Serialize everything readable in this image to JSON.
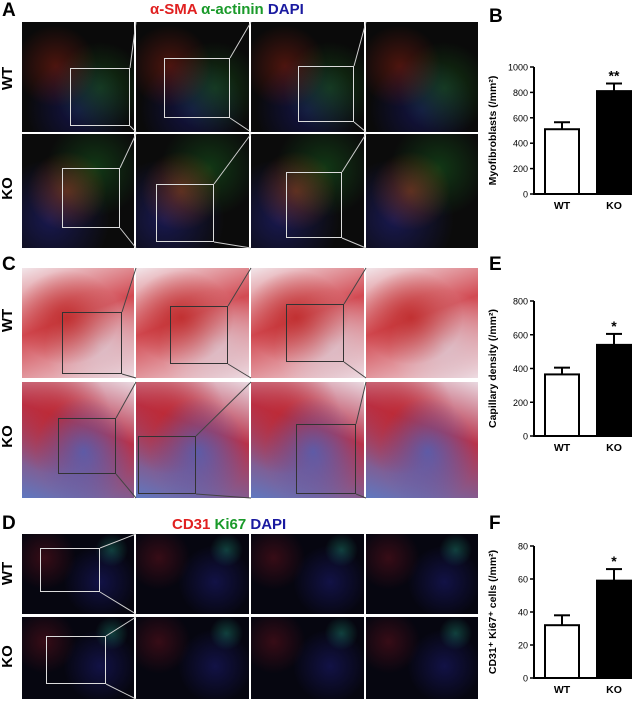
{
  "panels": {
    "A": {
      "letter": "A",
      "title_parts": [
        "α-SMA",
        " α-actinin",
        " DAPI"
      ],
      "title_colors": [
        "#e02020",
        "#1a9a2a",
        "#1a1aa0"
      ],
      "rows": [
        "WT",
        "KO"
      ]
    },
    "B": {
      "letter": "B"
    },
    "C": {
      "letter": "C",
      "rows": [
        "WT",
        "KO"
      ]
    },
    "D": {
      "letter": "D",
      "title_parts": [
        "CD31",
        " Ki67",
        " DAPI"
      ],
      "title_colors": [
        "#e02020",
        "#1a9a2a",
        "#1a1aa0"
      ],
      "rows": [
        "WT",
        "KO"
      ]
    },
    "E": {
      "letter": "E"
    },
    "F": {
      "letter": "F"
    }
  },
  "chart_data": [
    {
      "panel": "B",
      "type": "bar",
      "categories": [
        "WT",
        "KO"
      ],
      "values": [
        510,
        810
      ],
      "errors": [
        55,
        60
      ],
      "fills": [
        "#ffffff",
        "#000000"
      ],
      "ylabel": "Myofibroblasts (/mm²)",
      "ylim": [
        0,
        1000
      ],
      "yticks": [
        0,
        200,
        400,
        600,
        800,
        1000
      ],
      "significance": [
        "",
        "**"
      ]
    },
    {
      "panel": "E",
      "type": "bar",
      "categories": [
        "WT",
        "KO"
      ],
      "values": [
        365,
        540
      ],
      "errors": [
        40,
        65
      ],
      "fills": [
        "#ffffff",
        "#000000"
      ],
      "ylabel": "Capillary density (/mm²)",
      "ylim": [
        0,
        800
      ],
      "yticks": [
        0,
        200,
        400,
        600,
        800
      ],
      "significance": [
        "",
        "*"
      ]
    },
    {
      "panel": "F",
      "type": "bar",
      "categories": [
        "WT",
        "KO"
      ],
      "values": [
        32,
        59
      ],
      "errors": [
        6,
        7
      ],
      "fills": [
        "#ffffff",
        "#000000"
      ],
      "ylabel": "CD31⁺ Ki67⁺ cells (/mm²)",
      "ylim": [
        0,
        80
      ],
      "yticks": [
        0,
        20,
        40,
        60,
        80
      ],
      "significance": [
        "",
        "*"
      ]
    }
  ]
}
